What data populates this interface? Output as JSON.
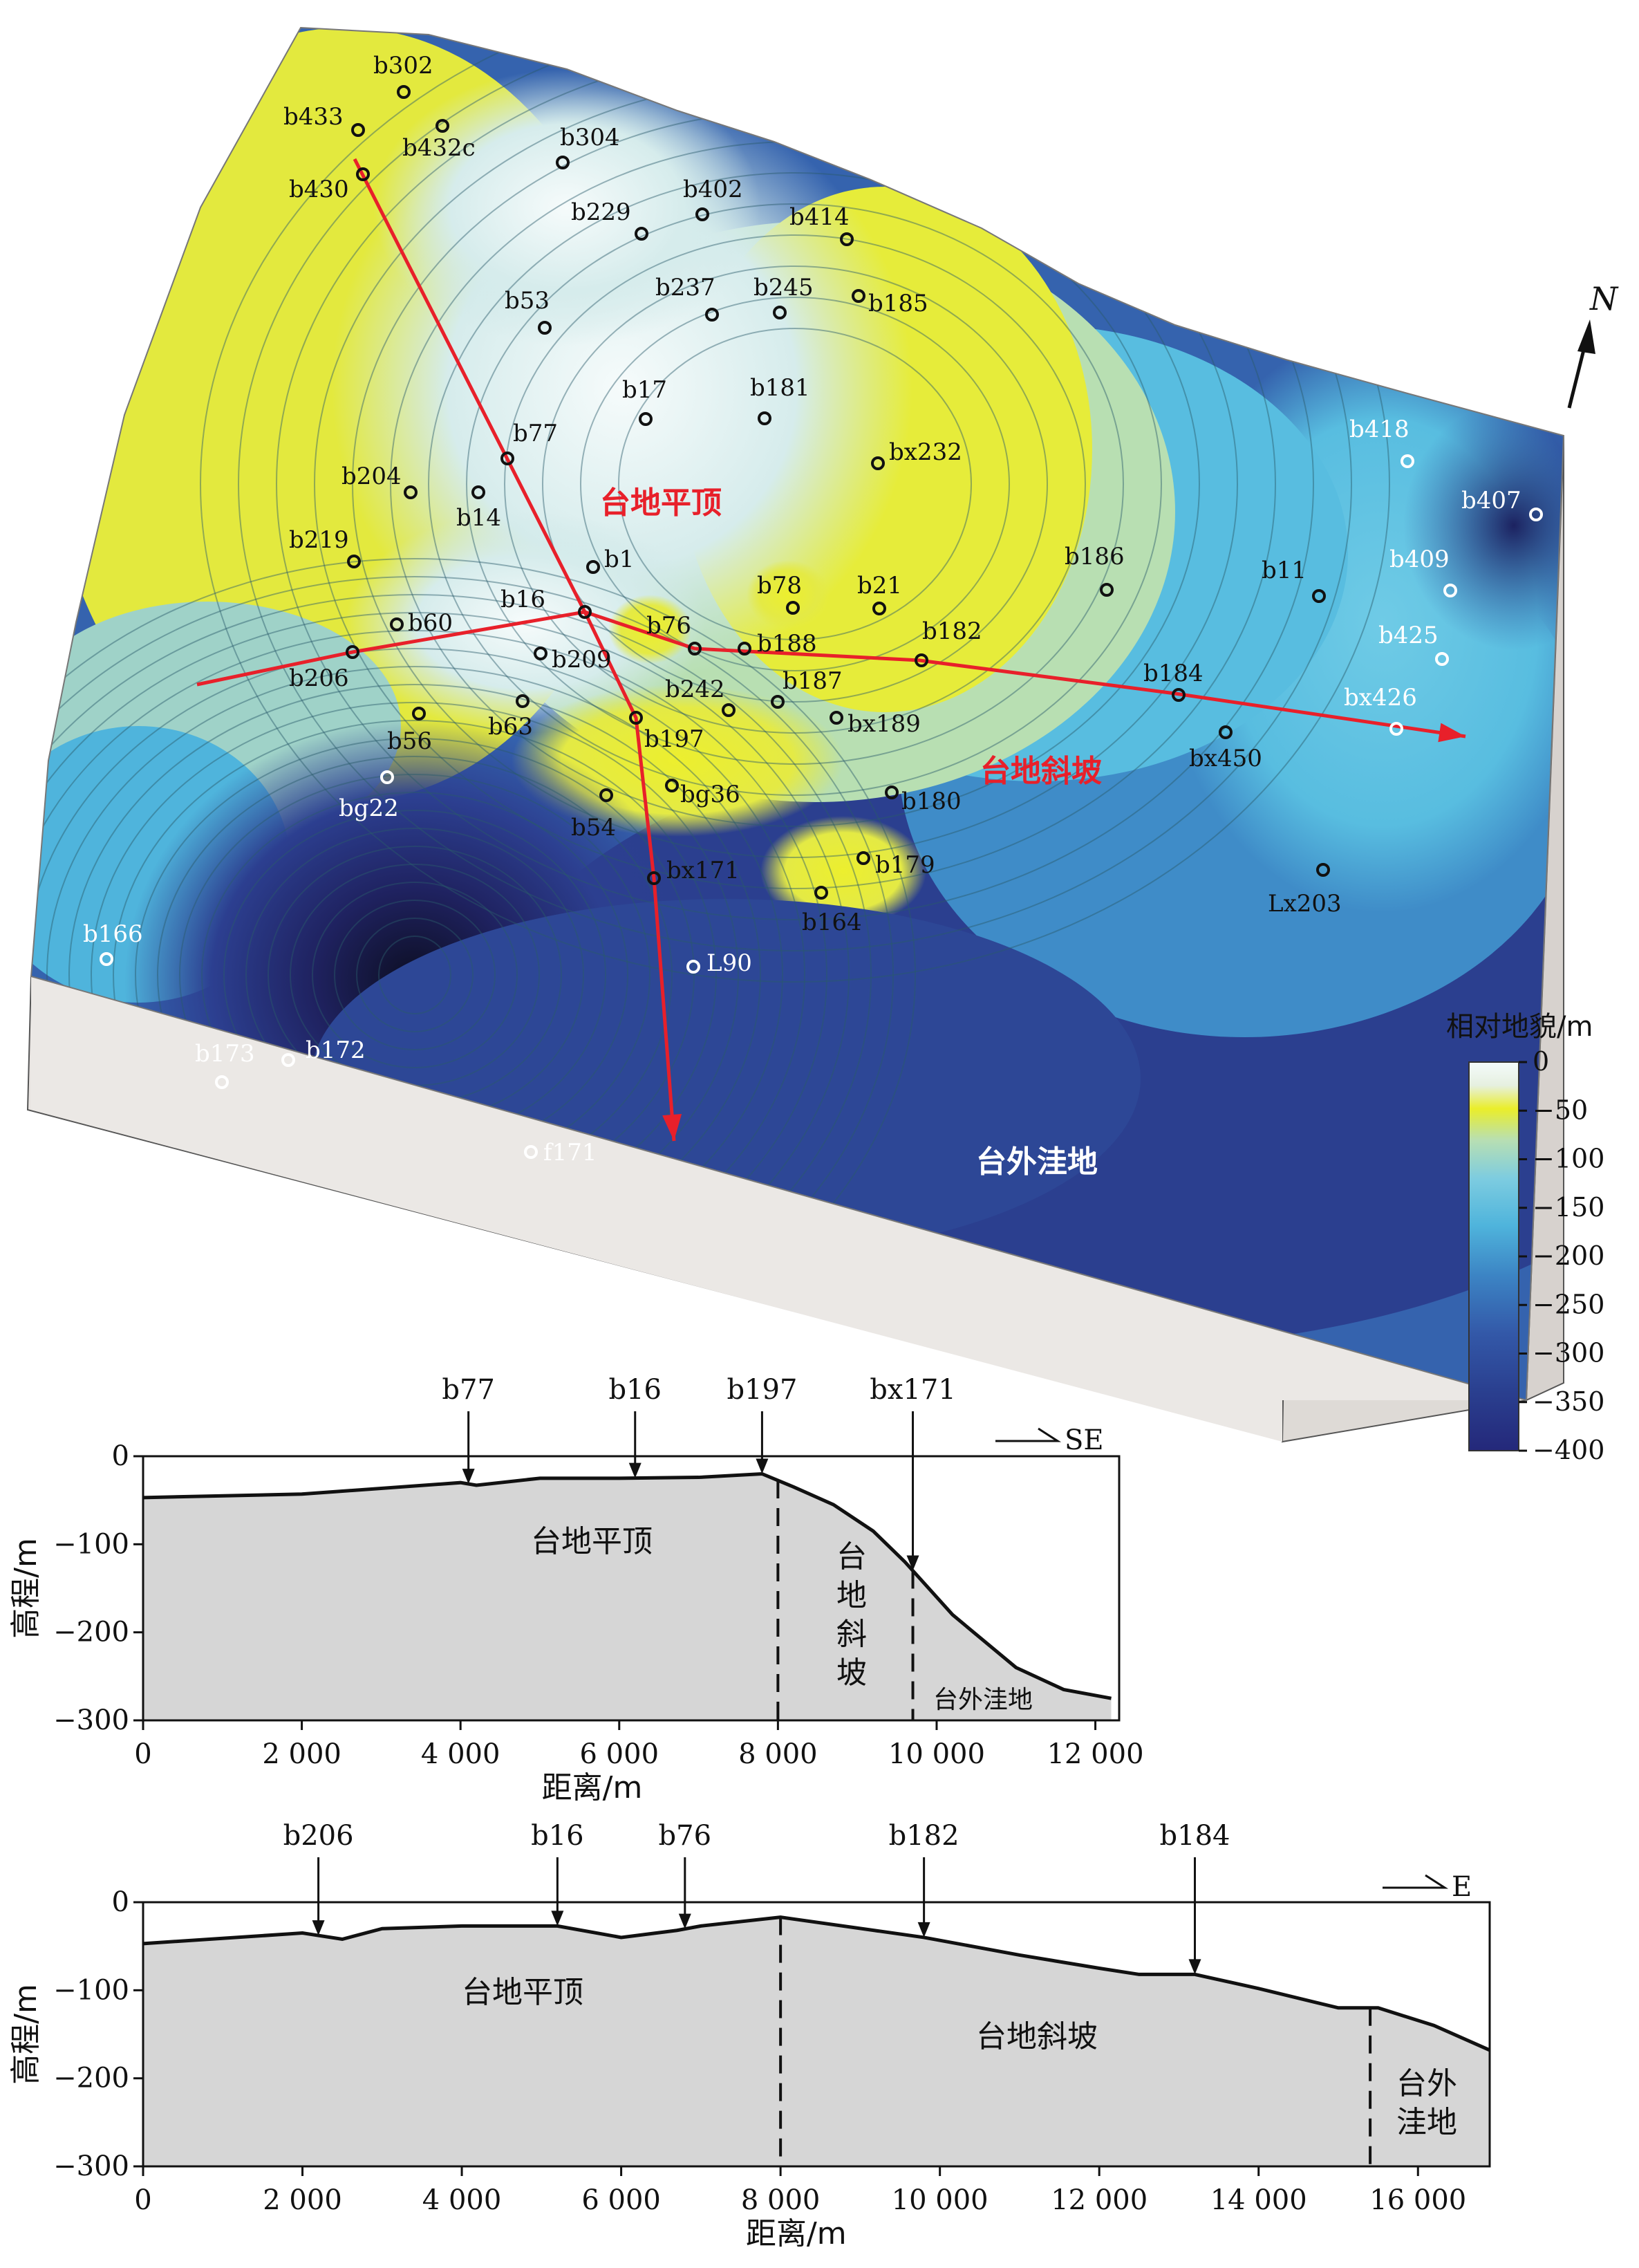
{
  "map": {
    "wells": [
      {
        "id": "b302",
        "white": false
      },
      {
        "id": "b433",
        "white": false
      },
      {
        "id": "b432c",
        "white": false
      },
      {
        "id": "b430",
        "white": false
      },
      {
        "id": "b304",
        "white": false
      },
      {
        "id": "b229",
        "white": false
      },
      {
        "id": "b402",
        "white": false
      },
      {
        "id": "b414",
        "white": false
      },
      {
        "id": "b237",
        "white": false
      },
      {
        "id": "b245",
        "white": false
      },
      {
        "id": "b185",
        "white": false
      },
      {
        "id": "b53",
        "white": false
      },
      {
        "id": "b17",
        "white": false
      },
      {
        "id": "b181",
        "white": false
      },
      {
        "id": "b77",
        "white": false
      },
      {
        "id": "bx232",
        "white": false
      },
      {
        "id": "b204",
        "white": false
      },
      {
        "id": "b14",
        "white": false
      },
      {
        "id": "b219",
        "white": false
      },
      {
        "id": "b1",
        "white": false
      },
      {
        "id": "b16",
        "white": false
      },
      {
        "id": "b78",
        "white": false
      },
      {
        "id": "b21",
        "white": false
      },
      {
        "id": "b186",
        "white": false
      },
      {
        "id": "b11",
        "white": false
      },
      {
        "id": "b60",
        "white": false
      },
      {
        "id": "b76",
        "white": false
      },
      {
        "id": "b188",
        "white": false
      },
      {
        "id": "b182",
        "white": false
      },
      {
        "id": "b206",
        "white": false
      },
      {
        "id": "b209",
        "white": false
      },
      {
        "id": "b242",
        "white": false
      },
      {
        "id": "b187",
        "white": false
      },
      {
        "id": "b184",
        "white": false
      },
      {
        "id": "b56",
        "white": false
      },
      {
        "id": "b63",
        "white": false
      },
      {
        "id": "b197",
        "white": false
      },
      {
        "id": "bx189",
        "white": false
      },
      {
        "id": "bx450",
        "white": false
      },
      {
        "id": "bg22",
        "white": true
      },
      {
        "id": "bg36",
        "white": false
      },
      {
        "id": "b54",
        "white": false
      },
      {
        "id": "b180",
        "white": false
      },
      {
        "id": "bx171",
        "white": false
      },
      {
        "id": "b179",
        "white": false
      },
      {
        "id": "b164",
        "white": false
      },
      {
        "id": "Lx203",
        "white": false
      },
      {
        "id": "b166",
        "white": true
      },
      {
        "id": "L90",
        "white": true
      },
      {
        "id": "b173",
        "white": true
      },
      {
        "id": "b172",
        "white": true
      },
      {
        "id": "f171",
        "white": true
      },
      {
        "id": "b418",
        "white": true
      },
      {
        "id": "b407",
        "white": true
      },
      {
        "id": "b409",
        "white": true
      },
      {
        "id": "b425",
        "white": true
      },
      {
        "id": "bx426",
        "white": true
      }
    ],
    "zones": {
      "platform_top": "台地平顶",
      "platform_slope": "台地斜坡",
      "basin": "台外洼地"
    },
    "north": "N",
    "profile_line_color": "#e8202a"
  },
  "legend": {
    "title": "相对地貌/m",
    "ticks": [
      "0",
      "−50",
      "−100",
      "−150",
      "−200",
      "−250",
      "−300",
      "−350",
      "−400"
    ],
    "colors": [
      "#f2f8f8",
      "#e8ee30",
      "#a8d8c4",
      "#4fb8dc",
      "#3f8cc8",
      "#3860b0",
      "#2a3f8f",
      "#22266a"
    ]
  },
  "profile_se": {
    "direction": "SE",
    "ylabel": "高程/m",
    "xlabel": "距离/m",
    "y_ticks": [
      "0",
      "−100",
      "−200",
      "−300"
    ],
    "x_ticks": [
      "0",
      "2 000",
      "4 000",
      "6 000",
      "8 000",
      "10 000",
      "12 000"
    ],
    "wells": [
      "b77",
      "b16",
      "b197",
      "bx171"
    ],
    "zones": {
      "top": "台地平顶",
      "slope": "台地斜坡",
      "basin": "台外洼地"
    },
    "chart_data": {
      "type": "area",
      "x": [
        0,
        2000,
        4000,
        4200,
        5000,
        6000,
        7000,
        7800,
        8200,
        8700,
        9200,
        9600,
        10200,
        11000,
        11600,
        12200
      ],
      "y": [
        -47,
        -43,
        -30,
        -33,
        -25,
        -25,
        -24,
        -20,
        -35,
        -55,
        -85,
        -120,
        -180,
        -240,
        -265,
        -275
      ],
      "xlim": [
        0,
        12300
      ],
      "ylim": [
        -300,
        0
      ],
      "boundaries": [
        8000,
        9700
      ]
    }
  },
  "profile_e": {
    "direction": "E",
    "ylabel": "高程/m",
    "xlabel": "距离/m",
    "y_ticks": [
      "0",
      "−100",
      "−200",
      "−300"
    ],
    "x_ticks": [
      "0",
      "2 000",
      "4 000",
      "6 000",
      "8 000",
      "10 000",
      "12 000",
      "14 000",
      "16 000"
    ],
    "wells": [
      "b206",
      "b16",
      "b76",
      "b182",
      "b184"
    ],
    "zones": {
      "top": "台地平顶",
      "slope": "台地斜坡",
      "basin": "台外洼地"
    },
    "chart_data": {
      "type": "area",
      "x": [
        0,
        2000,
        2500,
        3000,
        4000,
        5200,
        6000,
        6700,
        7000,
        8000,
        9800,
        11000,
        12000,
        12500,
        13200,
        14000,
        15000,
        15500,
        16200,
        16900
      ],
      "y": [
        -47,
        -35,
        -42,
        -30,
        -27,
        -27,
        -40,
        -32,
        -27,
        -17,
        -40,
        -60,
        -75,
        -82,
        -82,
        -98,
        -120,
        -120,
        -140,
        -168
      ],
      "xlim": [
        0,
        16900
      ],
      "ylim": [
        -300,
        0
      ],
      "boundaries": [
        8000,
        15400
      ]
    }
  }
}
